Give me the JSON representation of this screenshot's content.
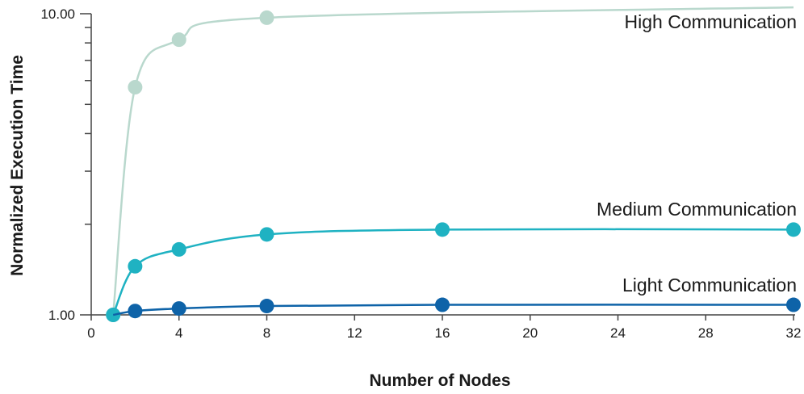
{
  "chart_data": {
    "type": "line",
    "xlabel": "Number of Nodes",
    "ylabel": "Normalized Execution Time",
    "x_ticks": [
      0,
      4,
      8,
      12,
      16,
      20,
      24,
      28,
      32
    ],
    "x_tick_labels": [
      "0",
      "4",
      "8",
      "12",
      "16",
      "20",
      "24",
      "28",
      "32"
    ],
    "xlim": [
      0,
      32
    ],
    "y_scale": "log",
    "ylim": [
      1,
      10
    ],
    "y_tick_labels": [
      {
        "value": 1,
        "label": "1.00"
      },
      {
        "value": 10,
        "label": "10.00"
      }
    ],
    "y_minor_ticks": [
      2,
      3,
      4,
      5,
      6,
      7,
      8,
      9
    ],
    "grid": false,
    "series": [
      {
        "name": "High Communication",
        "color": "#b9d8cd",
        "points": [
          [
            1,
            1.0
          ],
          [
            2,
            5.7
          ],
          [
            4,
            8.2
          ],
          [
            8,
            9.7
          ]
        ],
        "curve_end": [
          32,
          10.5
        ]
      },
      {
        "name": "Medium Communication",
        "color": "#1fb2c2",
        "points": [
          [
            1,
            1.0
          ],
          [
            2,
            1.45
          ],
          [
            4,
            1.65
          ],
          [
            8,
            1.85
          ],
          [
            16,
            1.92
          ],
          [
            32,
            1.92
          ]
        ]
      },
      {
        "name": "Light Communication",
        "color": "#0e63a8",
        "points": [
          [
            2,
            1.03
          ],
          [
            4,
            1.05
          ],
          [
            8,
            1.07
          ],
          [
            16,
            1.08
          ],
          [
            32,
            1.08
          ]
        ],
        "curve_start": [
          1,
          1.0
        ]
      }
    ]
  }
}
